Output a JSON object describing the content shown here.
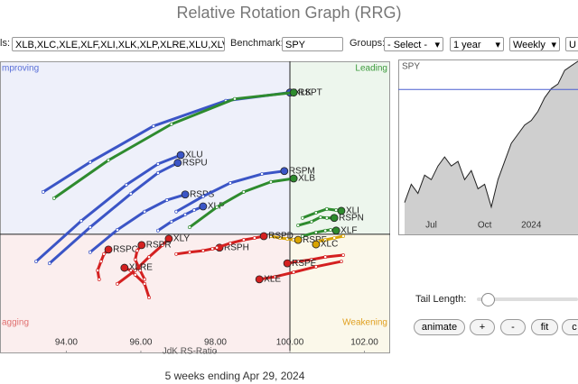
{
  "header": {
    "title": "Relative Rotation Graph (RRG)"
  },
  "toolbar": {
    "symbols_label": "ls:",
    "symbols": "XLB,XLC,XLE,XLF,XLI,XLK,XLP,XLRE,XLU,XLV,XL",
    "benchmark_label": "Benchmark:",
    "benchmark": "SPY",
    "groups_label": "Groups:",
    "groups": "- Select -",
    "period": "1 year",
    "frequency": "Weekly",
    "update": "U"
  },
  "chart_data": [
    {
      "type": "rrg",
      "xlabel": "JdK RS-Ratio",
      "xlim": [
        92.22,
        102.69
      ],
      "ylim": [
        96.8,
        104.65
      ],
      "center": [
        100,
        100
      ],
      "xticks": [
        {
          "value": 94,
          "label": "94.00"
        },
        {
          "value": 96,
          "label": "96.00"
        },
        {
          "value": 98,
          "label": "98.00"
        },
        {
          "value": 100,
          "label": "100.00"
        },
        {
          "value": 102,
          "label": "102.00"
        }
      ],
      "quadrants": [
        {
          "label": "mproving",
          "color": "#5a70d8",
          "fill": "#eef0fa"
        },
        {
          "label": "Leading",
          "color": "#3c9a3c",
          "fill": "#edf6ed"
        },
        {
          "label": "agging",
          "color": "#e07070",
          "fill": "#fbeeee"
        },
        {
          "label": "Weakening",
          "color": "#e0a020",
          "fill": "#fbf8ea"
        }
      ],
      "series": [
        {
          "name": "XLK",
          "color": "#3b55c6",
          "x": [
            93.38,
            94.64,
            96.34,
            98.28,
            100.0
          ],
          "y": [
            101.14,
            101.94,
            102.91,
            103.59,
            103.81
          ]
        },
        {
          "name": "RSPT",
          "color": "#2e8b2e",
          "x": [
            93.67,
            95.13,
            96.82,
            98.52,
            100.1
          ],
          "y": [
            100.97,
            101.99,
            102.96,
            103.64,
            103.81
          ]
        },
        {
          "name": "XLU",
          "color": "#3b55c6",
          "x": [
            93.19,
            94.4,
            95.61,
            96.46,
            97.07
          ],
          "y": [
            99.27,
            100.36,
            101.33,
            101.89,
            102.13
          ]
        },
        {
          "name": "RSPU",
          "color": "#3b55c6",
          "x": [
            93.55,
            94.64,
            95.73,
            96.46,
            96.99
          ],
          "y": [
            99.22,
            100.19,
            101.09,
            101.65,
            101.92
          ]
        },
        {
          "name": "RSPS",
          "color": "#3b55c6",
          "x": [
            94.64,
            95.37,
            96.1,
            96.7,
            97.19
          ],
          "y": [
            99.52,
            100.12,
            100.61,
            100.92,
            101.07
          ]
        },
        {
          "name": "XLP",
          "color": "#3b55c6",
          "x": [
            96.46,
            96.82,
            97.19,
            97.43,
            97.67
          ],
          "y": [
            100.1,
            100.34,
            100.53,
            100.65,
            100.75
          ]
        },
        {
          "name": "RSPM",
          "color": "#3b55c6",
          "x": [
            96.95,
            97.67,
            98.4,
            99.25,
            99.85
          ],
          "y": [
            100.61,
            101.02,
            101.38,
            101.62,
            101.7
          ]
        },
        {
          "name": "XLB",
          "color": "#2e8b2e",
          "x": [
            97.31,
            98.04,
            98.76,
            99.49,
            100.1
          ],
          "y": [
            100.19,
            100.73,
            101.14,
            101.41,
            101.5
          ]
        },
        {
          "name": "XLI",
          "color": "#2e8b2e",
          "x": [
            100.34,
            100.7,
            100.99,
            101.24,
            101.38
          ],
          "y": [
            100.44,
            100.58,
            100.68,
            100.65,
            100.63
          ]
        },
        {
          "name": "RSPN",
          "color": "#2e8b2e",
          "x": [
            100.22,
            100.58,
            100.82,
            100.99,
            101.19
          ],
          "y": [
            100.24,
            100.34,
            100.46,
            100.44,
            100.44
          ]
        },
        {
          "name": "XLF",
          "color": "#2e8b2e",
          "x": [
            100.34,
            100.7,
            100.95,
            101.09,
            101.24
          ],
          "y": [
            99.95,
            100.05,
            100.1,
            100.12,
            100.1
          ]
        },
        {
          "name": "RSPF",
          "color": "#d9a400",
          "x": [
            99.49,
            99.73,
            99.93,
            100.1,
            100.22
          ],
          "y": [
            99.95,
            99.9,
            99.88,
            99.85,
            99.85
          ]
        },
        {
          "name": "XLC",
          "color": "#d9a400",
          "x": [
            101.43,
            101.19,
            100.95,
            100.75,
            100.7
          ],
          "y": [
            99.95,
            99.9,
            99.85,
            99.81,
            99.73
          ]
        },
        {
          "name": "RSPE",
          "color": "#d42020",
          "x": [
            101.43,
            100.95,
            100.58,
            100.22,
            99.93
          ],
          "y": [
            99.44,
            99.39,
            99.32,
            99.27,
            99.22
          ]
        },
        {
          "name": "XLE",
          "color": "#d42020",
          "x": [
            101.38,
            100.7,
            100.1,
            99.61,
            99.18
          ],
          "y": [
            99.27,
            99.13,
            98.98,
            98.86,
            98.79
          ]
        },
        {
          "name": "XLY",
          "color": "#d42020",
          "x": [
            95.37,
            95.85,
            96.22,
            96.58,
            96.75
          ],
          "y": [
            98.67,
            99.03,
            99.39,
            99.71,
            99.88
          ]
        },
        {
          "name": "RSPC",
          "color": "#d42020",
          "x": [
            94.88,
            94.84,
            94.93,
            95.01,
            95.13
          ],
          "y": [
            98.79,
            99.03,
            99.27,
            99.47,
            99.59
          ]
        },
        {
          "name": "RSPR",
          "color": "#d42020",
          "x": [
            96.1,
            95.98,
            95.85,
            95.9,
            96.02
          ],
          "y": [
            98.79,
            99.03,
            99.32,
            99.56,
            99.71
          ]
        },
        {
          "name": "XLRE",
          "color": "#d42020",
          "x": [
            96.22,
            96.1,
            95.85,
            95.73,
            95.56
          ],
          "y": [
            98.3,
            98.67,
            98.91,
            99.03,
            99.1
          ]
        },
        {
          "name": "RSPH",
          "color": "#d42020",
          "x": [
            96.95,
            97.31,
            97.67,
            97.92,
            98.11
          ],
          "y": [
            99.47,
            99.52,
            99.56,
            99.61,
            99.64
          ]
        },
        {
          "name": "RSPD",
          "color": "#d42020",
          "x": [
            98.04,
            98.4,
            98.76,
            99.05,
            99.3
          ],
          "y": [
            99.64,
            99.76,
            99.85,
            99.9,
            99.95
          ]
        }
      ]
    },
    {
      "type": "area",
      "title": "SPY",
      "color": "#cfcfcf",
      "line_color": "#222222",
      "ylim": [
        390,
        530
      ],
      "reference_line": {
        "value": 506,
        "color": "#4a5fd0"
      },
      "categories": [
        null,
        null,
        null,
        null,
        "Jul",
        null,
        null,
        null,
        null,
        null,
        null,
        null,
        "Oct",
        null,
        null,
        null,
        null,
        null,
        null,
        "2024",
        null,
        null,
        null,
        null,
        null,
        null,
        null
      ],
      "values": [
        415.5,
        430.1,
        422.8,
        437.4,
        433.8,
        444.7,
        452.0,
        444.7,
        448.4,
        433.8,
        441.1,
        426.5,
        430.1,
        411.9,
        433.8,
        448.4,
        462.9,
        470.2,
        477.5,
        481.2,
        488.5,
        499.4,
        506.7,
        510.4,
        521.3,
        525.0,
        528.6
      ]
    }
  ],
  "controls": {
    "tail_length_label": "Tail Length:",
    "buttons": [
      "animate",
      "+",
      "-",
      "fit",
      "c"
    ]
  },
  "footer": "5 weeks ending Apr 29, 2024"
}
